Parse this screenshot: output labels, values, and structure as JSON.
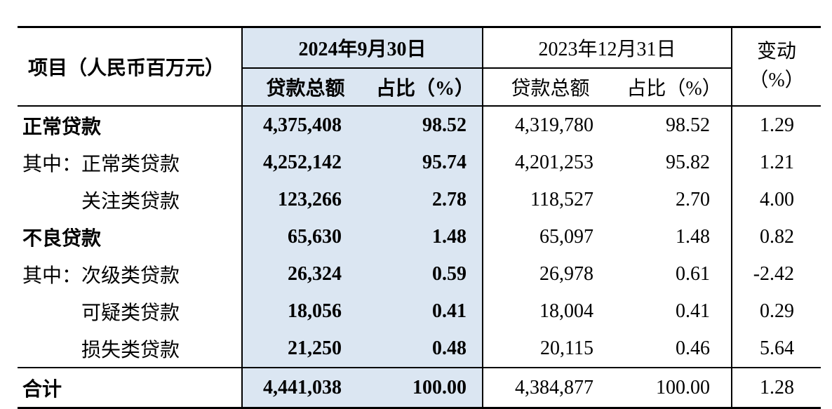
{
  "table": {
    "item_header": "项目（人民币百万元）",
    "group_2024_label": "2024年9月30日",
    "group_2023_label": "2023年12月31日",
    "sub_amount_2024": "贷款总额",
    "sub_pct_2024": "占比（%）",
    "sub_amount_2023": "贷款总额",
    "sub_pct_2023": "占比（%）",
    "change_header_line1": "变动",
    "change_header_line2": "（%）",
    "rows": [
      {
        "prefix": "",
        "label": "正常贷款",
        "amount_2024": "4,375,408",
        "pct_2024": "98.52",
        "amount_2023": "4,319,780",
        "pct_2023": "98.52",
        "change": "1.29"
      },
      {
        "prefix": "其中：",
        "label": "正常类贷款",
        "amount_2024": "4,252,142",
        "pct_2024": "95.74",
        "amount_2023": "4,201,253",
        "pct_2023": "95.82",
        "change": "1.21"
      },
      {
        "prefix": "",
        "label": "关注类贷款",
        "amount_2024": "123,266",
        "pct_2024": "2.78",
        "amount_2023": "118,527",
        "pct_2023": "2.70",
        "change": "4.00"
      },
      {
        "prefix": "",
        "label": "不良贷款",
        "amount_2024": "65,630",
        "pct_2024": "1.48",
        "amount_2023": "65,097",
        "pct_2023": "1.48",
        "change": "0.82"
      },
      {
        "prefix": "其中：",
        "label": "次级类贷款",
        "amount_2024": "26,324",
        "pct_2024": "0.59",
        "amount_2023": "26,978",
        "pct_2023": "0.61",
        "change": "-2.42"
      },
      {
        "prefix": "",
        "label": "可疑类贷款",
        "amount_2024": "18,056",
        "pct_2024": "0.41",
        "amount_2023": "18,004",
        "pct_2023": "0.41",
        "change": "0.29"
      },
      {
        "prefix": "",
        "label": "损失类贷款",
        "amount_2024": "21,250",
        "pct_2024": "0.48",
        "amount_2023": "20,115",
        "pct_2023": "0.46",
        "change": "5.64"
      }
    ],
    "total": {
      "label": "合计",
      "amount_2024": "4,441,038",
      "pct_2024": "100.00",
      "amount_2023": "4,384,877",
      "pct_2023": "100.00",
      "change": "1.28"
    }
  },
  "colors": {
    "highlight_2024_column": "#dbe6f2",
    "border": "#000000",
    "text": "#000000"
  }
}
